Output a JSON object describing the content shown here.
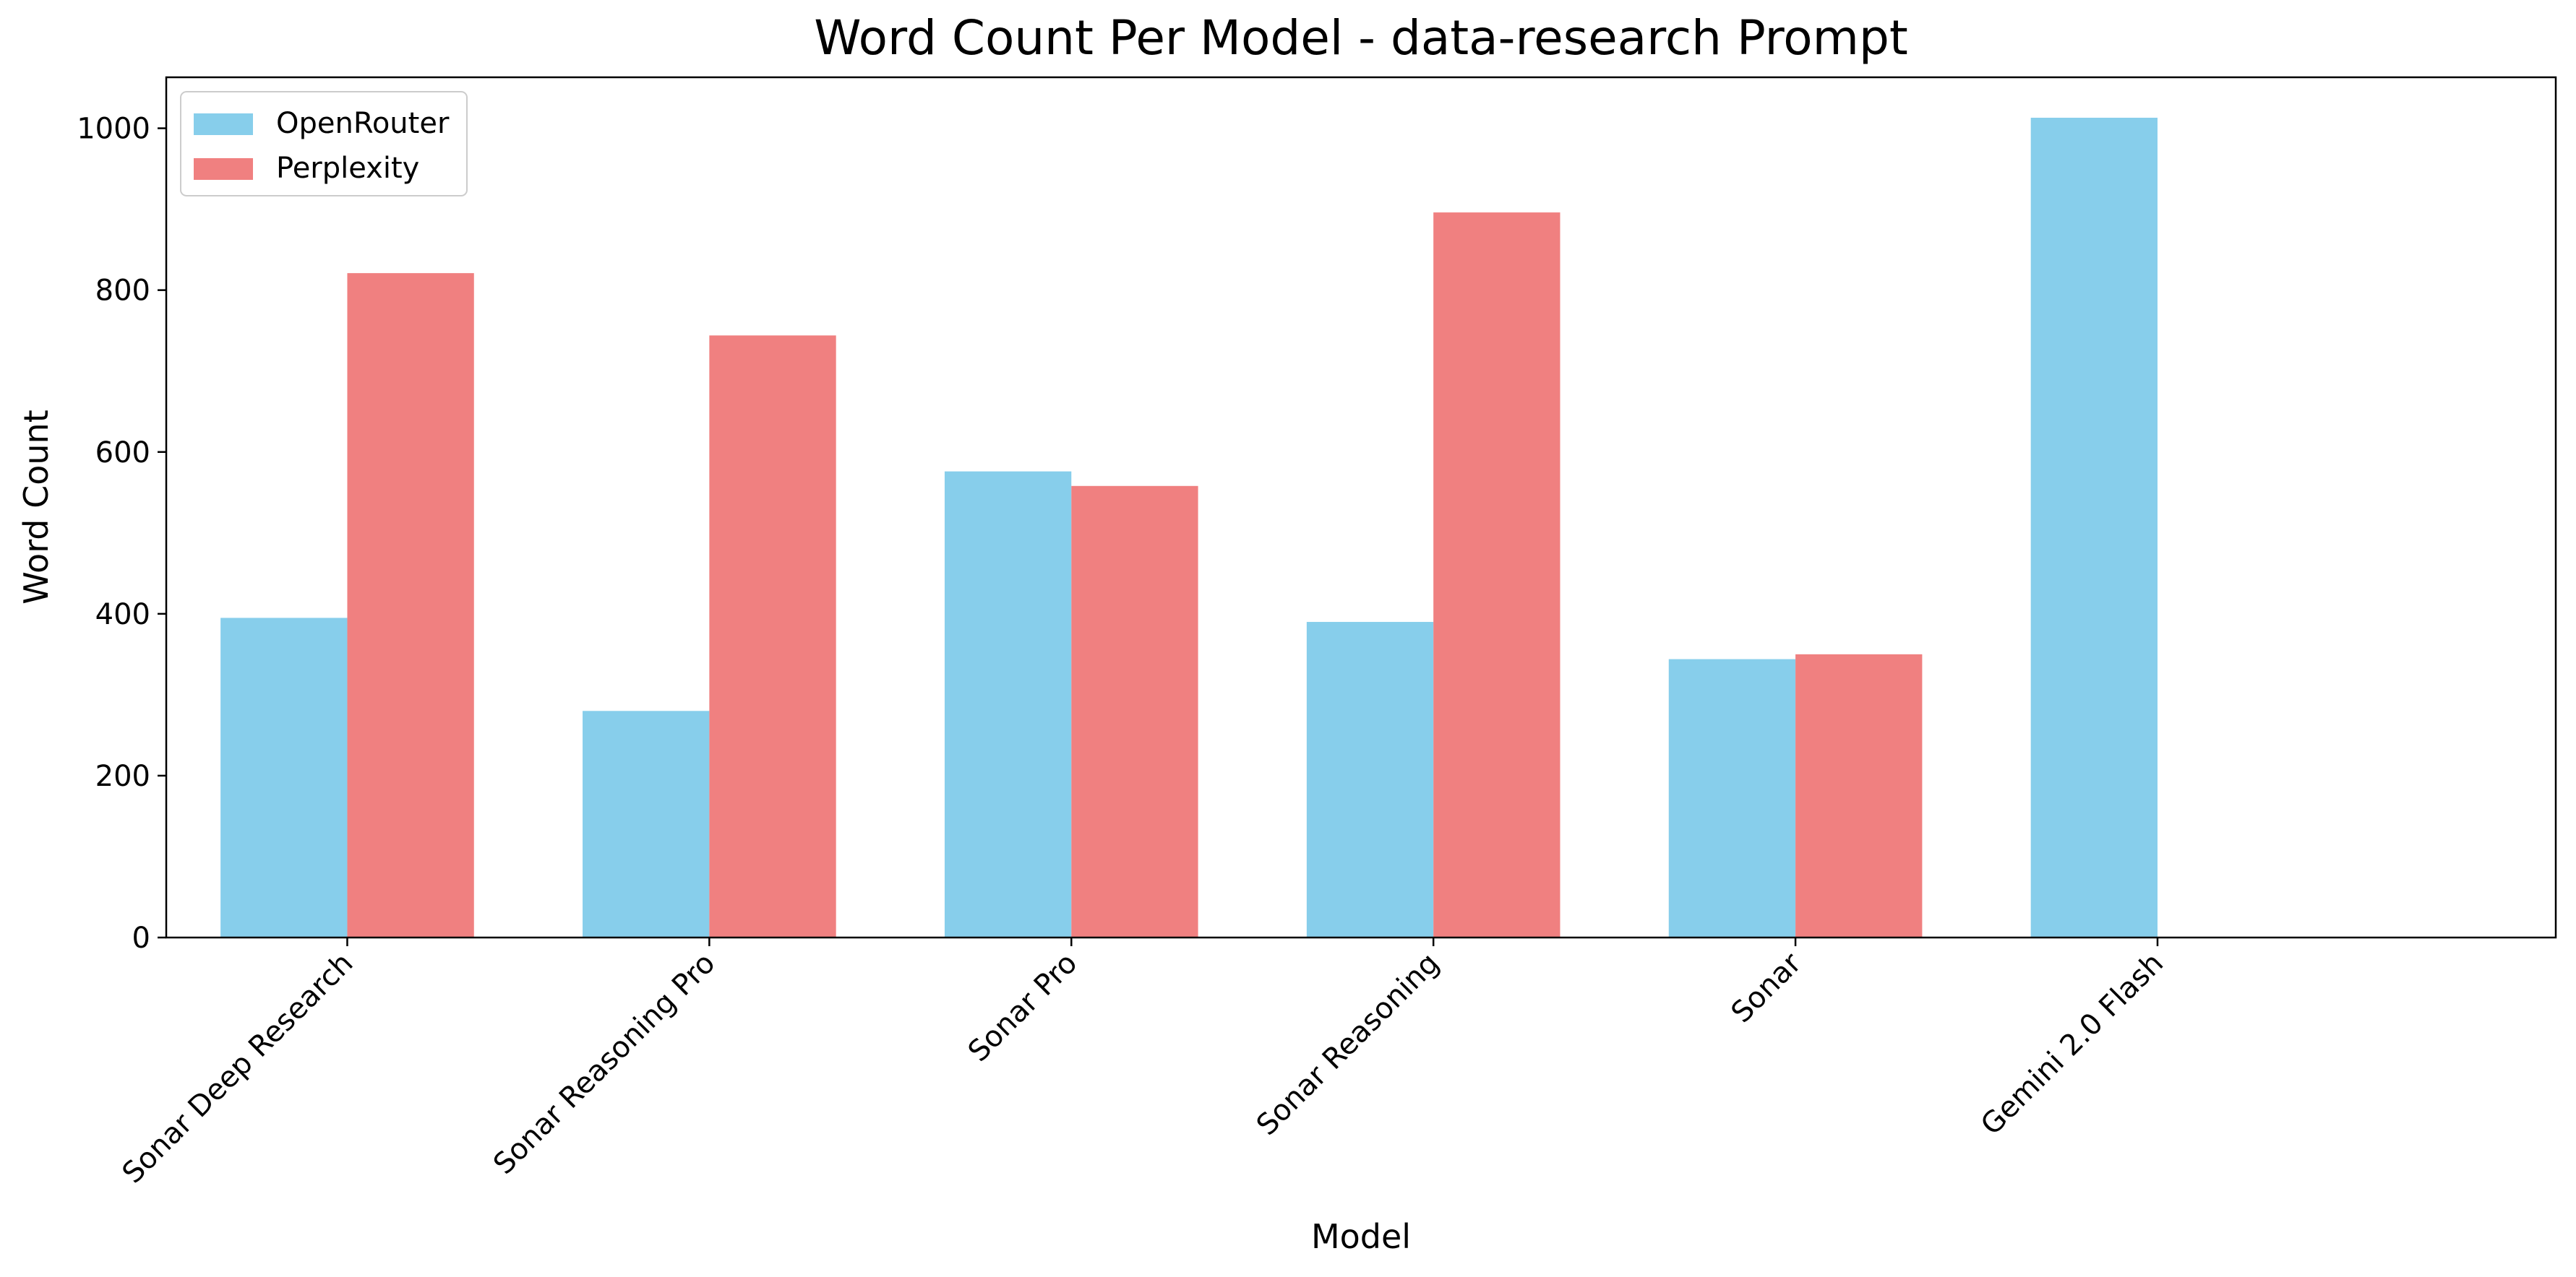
{
  "chart_data": {
    "type": "bar",
    "title": "Word Count Per Model - data-research Prompt",
    "xlabel": "Model",
    "ylabel": "Word Count",
    "categories": [
      "Sonar Deep Research",
      "Sonar Reasoning Pro",
      "Sonar Pro",
      "Sonar Reasoning",
      "Sonar",
      "Gemini 2.0 Flash"
    ],
    "series": [
      {
        "name": "OpenRouter",
        "color": "#87ceeb",
        "values": [
          395,
          280,
          576,
          390,
          344,
          1013
        ]
      },
      {
        "name": "Perplexity",
        "color": "#f08080",
        "values": [
          821,
          744,
          558,
          896,
          350,
          null
        ]
      }
    ],
    "ylim": [
      0,
      1063
    ],
    "yticks": [
      0,
      200,
      400,
      600,
      800,
      1000
    ],
    "grid": false,
    "legend_position": "top-left"
  }
}
